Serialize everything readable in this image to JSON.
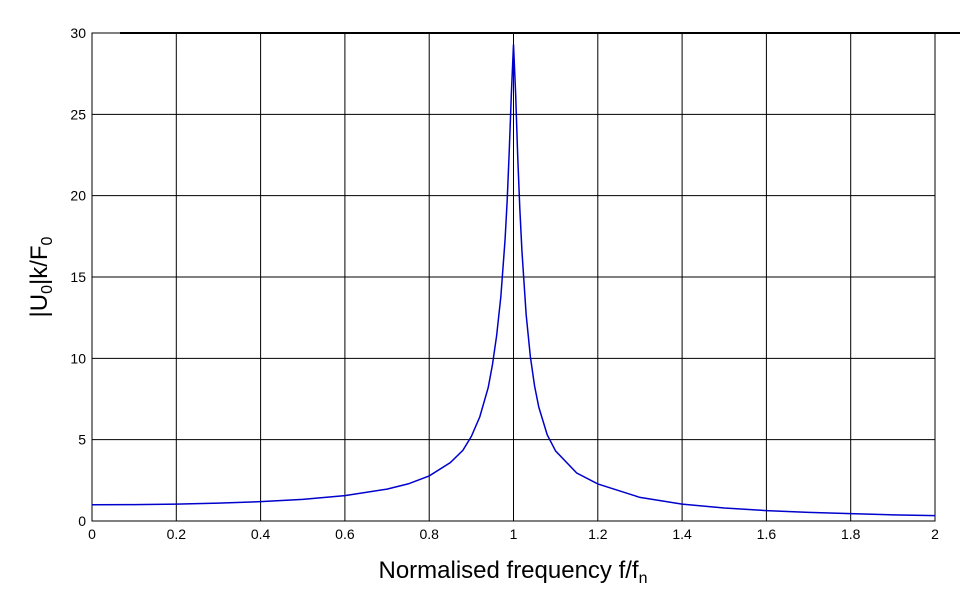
{
  "chart_data": {
    "type": "line",
    "title": "",
    "xlabel": "Normalised frequency f/f",
    "xlabel_sub": "n",
    "ylabel": "|U",
    "ylabel_sub1": "0",
    "ylabel_mid": "|k/F",
    "ylabel_sub2": "0",
    "xlim": [
      0,
      2
    ],
    "ylim": [
      0,
      30
    ],
    "xticks": [
      0,
      0.2,
      0.4,
      0.6,
      0.8,
      1,
      1.2,
      1.4,
      1.6,
      1.8,
      2
    ],
    "xtick_labels": [
      "0",
      "0.2",
      "0.4",
      "0.6",
      "0.8",
      "1",
      "1.2",
      "1.4",
      "1.6",
      "1.8",
      "2"
    ],
    "yticks": [
      0,
      5,
      10,
      15,
      20,
      25,
      30
    ],
    "ytick_labels": [
      "0",
      "5",
      "10",
      "15",
      "20",
      "25",
      "30"
    ],
    "grid": true,
    "legend": "none",
    "line_color": "#0000cc",
    "series": [
      {
        "x": [
          0,
          0.1,
          0.2,
          0.3,
          0.4,
          0.5,
          0.6,
          0.7,
          0.75,
          0.8,
          0.85,
          0.88,
          0.9,
          0.92,
          0.94,
          0.95,
          0.96,
          0.97,
          0.98,
          0.985,
          0.99,
          0.995,
          1.0,
          1.005,
          1.01,
          1.015,
          1.02,
          1.03,
          1.04,
          1.05,
          1.06,
          1.08,
          1.1,
          1.15,
          1.2,
          1.3,
          1.4,
          1.5,
          1.6,
          1.7,
          1.8,
          1.9,
          2.0
        ],
        "values": [
          1.0,
          1.01,
          1.04,
          1.1,
          1.19,
          1.33,
          1.56,
          1.96,
          2.28,
          2.77,
          3.59,
          4.35,
          5.2,
          6.4,
          8.2,
          9.6,
          11.4,
          13.8,
          17.3,
          19.7,
          22.8,
          26.3,
          29.3,
          26.3,
          22.4,
          19.2,
          16.6,
          12.7,
          10.1,
          8.3,
          7.0,
          5.3,
          4.3,
          2.95,
          2.28,
          1.45,
          1.04,
          0.8,
          0.64,
          0.53,
          0.45,
          0.38,
          0.33
        ]
      }
    ]
  }
}
